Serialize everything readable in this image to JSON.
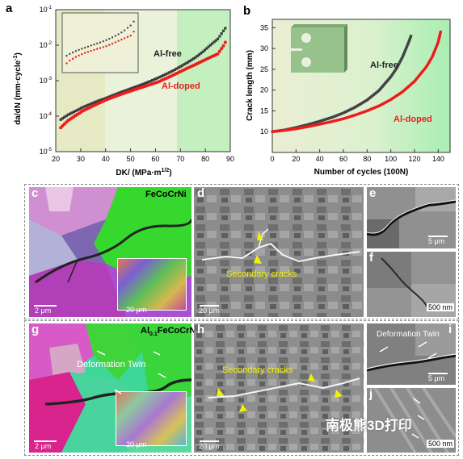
{
  "panels": {
    "a": "a",
    "b": "b",
    "c": "c",
    "d": "d",
    "e": "e",
    "f": "f",
    "g": "g",
    "h": "h",
    "i": "i",
    "j": "j"
  },
  "chart_a": {
    "ylabel": "da/dN (mm·cycle",
    "ylabel_sup": "-1",
    "ylabel_end": ")",
    "xlabel": "DK/ (MPa·m",
    "xlabel_sup": "1/2",
    "xlabel_end": ")",
    "yticks": [
      "10",
      "10",
      "10",
      "10",
      "10"
    ],
    "yexps": [
      "-1",
      "-2",
      "-3",
      "-4",
      "-5"
    ],
    "xticks": [
      "20",
      "30",
      "40",
      "50",
      "60",
      "70",
      "80",
      "90"
    ],
    "legend_free": "Al-free",
    "legend_doped": "Al-doped",
    "colors": {
      "free": "#3a3a3a",
      "doped": "#ee1c1c"
    }
  },
  "chart_b": {
    "ylabel": "Crack length (mm)",
    "xlabel": "Number of cycles (100N)",
    "yticks": [
      "10",
      "15",
      "20",
      "25",
      "30",
      "35"
    ],
    "xticks": [
      "0",
      "20",
      "40",
      "60",
      "80",
      "100",
      "120",
      "140"
    ],
    "legend_free": "Al-free",
    "legend_doped": "Al-doped"
  },
  "chart_data": [
    {
      "type": "scatter",
      "panel": "a",
      "xlabel": "DK/ (MPa·m1/2)",
      "ylabel": "da/dN (mm·cycle-1)",
      "xlim": [
        20,
        90
      ],
      "ylim": [
        1e-05,
        0.1
      ],
      "yscale": "log",
      "series": [
        {
          "name": "Al-free",
          "x": [
            22,
            25,
            28,
            31,
            34,
            37,
            40,
            43,
            46,
            49,
            52,
            55,
            58,
            61,
            64,
            67,
            70,
            73,
            76,
            79,
            82,
            85,
            88
          ],
          "y": [
            8e-05,
            0.00011,
            0.00014,
            0.00018,
            0.00022,
            0.00027,
            0.00032,
            0.00039,
            0.00047,
            0.00056,
            0.00067,
            0.0008,
            0.00097,
            0.0012,
            0.0015,
            0.0019,
            0.0025,
            0.0033,
            0.0045,
            0.0065,
            0.01,
            0.015,
            0.03
          ]
        },
        {
          "name": "Al-doped",
          "x": [
            22,
            25,
            28,
            31,
            34,
            37,
            40,
            43,
            46,
            49,
            52,
            55,
            58,
            61,
            64,
            67,
            70,
            73,
            76,
            79,
            82,
            85,
            88
          ],
          "y": [
            5e-05,
            8e-05,
            0.00011,
            0.00015,
            0.00019,
            0.00024,
            0.0003,
            0.00036,
            0.00043,
            0.00051,
            0.0006,
            0.0007,
            0.00082,
            0.00097,
            0.0012,
            0.0015,
            0.0019,
            0.0024,
            0.003,
            0.0038,
            0.0048,
            0.006,
            0.012
          ]
        }
      ]
    },
    {
      "type": "line",
      "panel": "b",
      "xlabel": "Number of cycles (100N)",
      "ylabel": "Crack length (mm)",
      "xlim": [
        0,
        150
      ],
      "ylim": [
        5,
        37
      ],
      "series": [
        {
          "name": "Al-free",
          "x": [
            0,
            10,
            20,
            30,
            40,
            50,
            60,
            70,
            80,
            90,
            100,
            105,
            110,
            115,
            117
          ],
          "y": [
            10,
            10.4,
            11.0,
            11.7,
            12.5,
            13.4,
            14.5,
            15.9,
            17.6,
            19.9,
            23.2,
            25.3,
            28.0,
            31.5,
            33
          ]
        },
        {
          "name": "Al-doped",
          "x": [
            0,
            10,
            20,
            30,
            40,
            50,
            60,
            70,
            80,
            90,
            100,
            110,
            120,
            130,
            135,
            140,
            142
          ],
          "y": [
            10,
            10.3,
            10.7,
            11.2,
            11.8,
            12.4,
            13.1,
            14.0,
            15.0,
            16.2,
            17.7,
            19.6,
            22.1,
            25.6,
            28.0,
            31.5,
            34
          ]
        }
      ]
    }
  ],
  "micro": {
    "c_title": "FeCoCrNi",
    "c_scale": "2 μm",
    "c_inset_scale": "20 μm",
    "d_label": "Secondary cracks",
    "d_scale": "20 μm",
    "e_scale": "5 μm",
    "f_scale": "500 nm",
    "g_title_pre": "Al",
    "g_title_sub": "0.1",
    "g_title_post": "FeCoCrNi",
    "g_twin": "Deformation Twin",
    "g_scale": "2 μm",
    "g_inset_scale": "20 μm",
    "h_label": "Secondary cracks",
    "h_scale": "20 μm",
    "i_twin": "Deformation Twin",
    "i_scale": "5 μm",
    "j_scale": "500 nm",
    "watermark": "南极熊3D打印"
  }
}
